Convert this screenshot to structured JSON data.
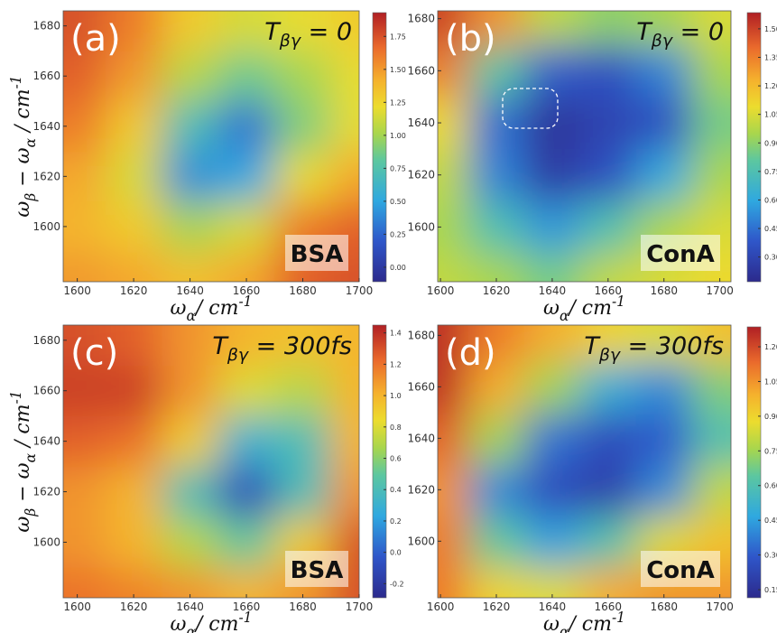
{
  "chart_data": [
    {
      "type": "heatmap",
      "panel_label": "(a)",
      "title": [
        "T",
        "βγ",
        " = 0"
      ],
      "sample_label": "BSA",
      "xlabel": [
        "ω",
        "α",
        "/ cm",
        "-1"
      ],
      "ylabel": [
        "ω",
        "β",
        " − ω",
        "α",
        " / cm",
        "-1"
      ],
      "x": [
        1600,
        1620,
        1640,
        1660,
        1680,
        1700
      ],
      "y": [
        1580,
        1600,
        1620,
        1640,
        1660,
        1680
      ],
      "z": [
        [
          1.5,
          1.45,
          1.35,
          1.45,
          1.7,
          1.75
        ],
        [
          1.4,
          1.3,
          1.0,
          1.15,
          1.6,
          1.7
        ],
        [
          1.45,
          1.15,
          0.4,
          0.5,
          1.2,
          1.45
        ],
        [
          1.6,
          1.3,
          0.7,
          0.3,
          0.9,
          1.2
        ],
        [
          1.7,
          1.5,
          1.05,
          0.85,
          1.0,
          1.2
        ],
        [
          1.75,
          1.6,
          1.3,
          1.15,
          1.2,
          1.3
        ]
      ],
      "xlim": [
        1595,
        1700
      ],
      "ylim": [
        1578,
        1686
      ],
      "xticks": [
        1600,
        1620,
        1640,
        1660,
        1680,
        1700
      ],
      "yticks": [
        1600,
        1620,
        1640,
        1660,
        1680
      ],
      "clim": [
        -0.11,
        1.93
      ],
      "cticks": [
        {
          "value": 0,
          "label": "0.00"
        },
        0.25,
        {
          "value": 0.5,
          "label": "0.50"
        },
        0.75,
        {
          "value": 1,
          "label": "1.00"
        },
        1.25,
        {
          "value": 1.5,
          "label": "1.50"
        },
        1.75
      ]
    },
    {
      "type": "heatmap",
      "panel_label": "(b)",
      "title": [
        "T",
        "βγ",
        " = 0"
      ],
      "sample_label": "ConA",
      "xlabel": [
        "ω",
        "α",
        "/ cm",
        "-1"
      ],
      "x": [
        1600,
        1620,
        1640,
        1660,
        1680,
        1700
      ],
      "y": [
        1580,
        1600,
        1620,
        1640,
        1660,
        1680
      ],
      "z": [
        [
          1.0,
          0.95,
          0.85,
          1.0,
          1.05,
          1.1
        ],
        [
          0.95,
          0.75,
          0.55,
          0.75,
          0.95,
          1.05
        ],
        [
          1.0,
          0.5,
          0.25,
          0.35,
          0.6,
          0.95
        ],
        [
          1.1,
          0.45,
          0.22,
          0.3,
          0.35,
          0.85
        ],
        [
          1.35,
          0.8,
          0.4,
          0.35,
          0.5,
          0.95
        ],
        [
          1.5,
          1.3,
          1.0,
          0.9,
          0.95,
          1.05
        ]
      ],
      "xlim": [
        1599,
        1704
      ],
      "ylim": [
        1579,
        1683
      ],
      "xticks": [
        1600,
        1620,
        1640,
        1660,
        1680,
        1700
      ],
      "yticks": [
        1600,
        1620,
        1640,
        1660,
        1680
      ],
      "clim": [
        0.17,
        1.585
      ],
      "cticks": [
        {
          "value": 0.3,
          "label": "0.30"
        },
        0.45,
        {
          "value": 0.6,
          "label": "0.60"
        },
        0.75,
        {
          "value": 0.9,
          "label": "0.90"
        },
        1.05,
        {
          "value": 1.2,
          "label": "1.20"
        },
        1.35,
        {
          "value": 1.5,
          "label": "1.50"
        }
      ]
    },
    {
      "type": "heatmap",
      "panel_label": "(c)",
      "title": [
        "T",
        "βγ",
        " = 300fs"
      ],
      "sample_label": "BSA",
      "xlabel": [
        "ω",
        "α",
        "/ cm",
        "-1"
      ],
      "ylabel": [
        "ω",
        "β",
        " − ω",
        "α",
        " / cm",
        "-1"
      ],
      "x": [
        1600,
        1620,
        1640,
        1660,
        1680,
        1700
      ],
      "y": [
        1580,
        1600,
        1620,
        1640,
        1660,
        1680
      ],
      "z": [
        [
          1.2,
          1.15,
          1.1,
          1.0,
          1.1,
          1.3
        ],
        [
          1.1,
          1.0,
          0.7,
          0.5,
          0.9,
          1.3
        ],
        [
          1.1,
          1.0,
          0.4,
          -0.1,
          0.4,
          1.1
        ],
        [
          1.25,
          1.2,
          0.9,
          0.3,
          0.4,
          1.0
        ],
        [
          1.35,
          1.35,
          1.1,
          0.8,
          0.7,
          1.0
        ],
        [
          1.3,
          1.25,
          1.1,
          1.0,
          0.95,
          1.0
        ]
      ],
      "xlim": [
        1595,
        1700
      ],
      "ylim": [
        1578,
        1686
      ],
      "xticks": [
        1600,
        1620,
        1640,
        1660,
        1680,
        1700
      ],
      "yticks": [
        1600,
        1620,
        1640,
        1660,
        1680
      ],
      "clim": [
        -0.29,
        1.45
      ],
      "cticks": [
        -0.2,
        {
          "value": 0,
          "label": "0.0"
        },
        0.2,
        0.4,
        0.6,
        0.8,
        {
          "value": 1,
          "label": "1.0"
        },
        1.2,
        1.4
      ]
    },
    {
      "type": "heatmap",
      "panel_label": "(d)",
      "title": [
        "T",
        "βγ",
        " = 300fs"
      ],
      "sample_label": "ConA",
      "xlabel": [
        "ω",
        "α",
        "/ cm",
        "-1"
      ],
      "x": [
        1600,
        1620,
        1640,
        1660,
        1680,
        1700
      ],
      "y": [
        1580,
        1600,
        1620,
        1640,
        1660,
        1680
      ],
      "z": [
        [
          1.1,
          0.9,
          0.85,
          1.0,
          1.05,
          1.05
        ],
        [
          1.1,
          0.65,
          0.45,
          0.6,
          0.85,
          0.95
        ],
        [
          1.05,
          0.4,
          0.25,
          0.2,
          0.4,
          0.8
        ],
        [
          1.15,
          0.75,
          0.35,
          0.25,
          0.3,
          0.6
        ],
        [
          1.25,
          1.0,
          0.75,
          0.5,
          0.4,
          0.7
        ],
        [
          1.25,
          1.1,
          1.0,
          0.9,
          0.85,
          0.95
        ]
      ],
      "xlim": [
        1599,
        1704
      ],
      "ylim": [
        1578,
        1684
      ],
      "xticks": [
        1600,
        1620,
        1640,
        1660,
        1680,
        1700
      ],
      "yticks": [
        1600,
        1620,
        1640,
        1660,
        1680
      ],
      "clim": [
        0.115,
        1.286
      ],
      "cticks": [
        0.15,
        {
          "value": 0.3,
          "label": "0.30"
        },
        0.45,
        {
          "value": 0.6,
          "label": "0.60"
        },
        0.75,
        {
          "value": 0.9,
          "label": "0.90"
        },
        1.05,
        {
          "value": 1.2,
          "label": "1.20"
        }
      ]
    }
  ]
}
